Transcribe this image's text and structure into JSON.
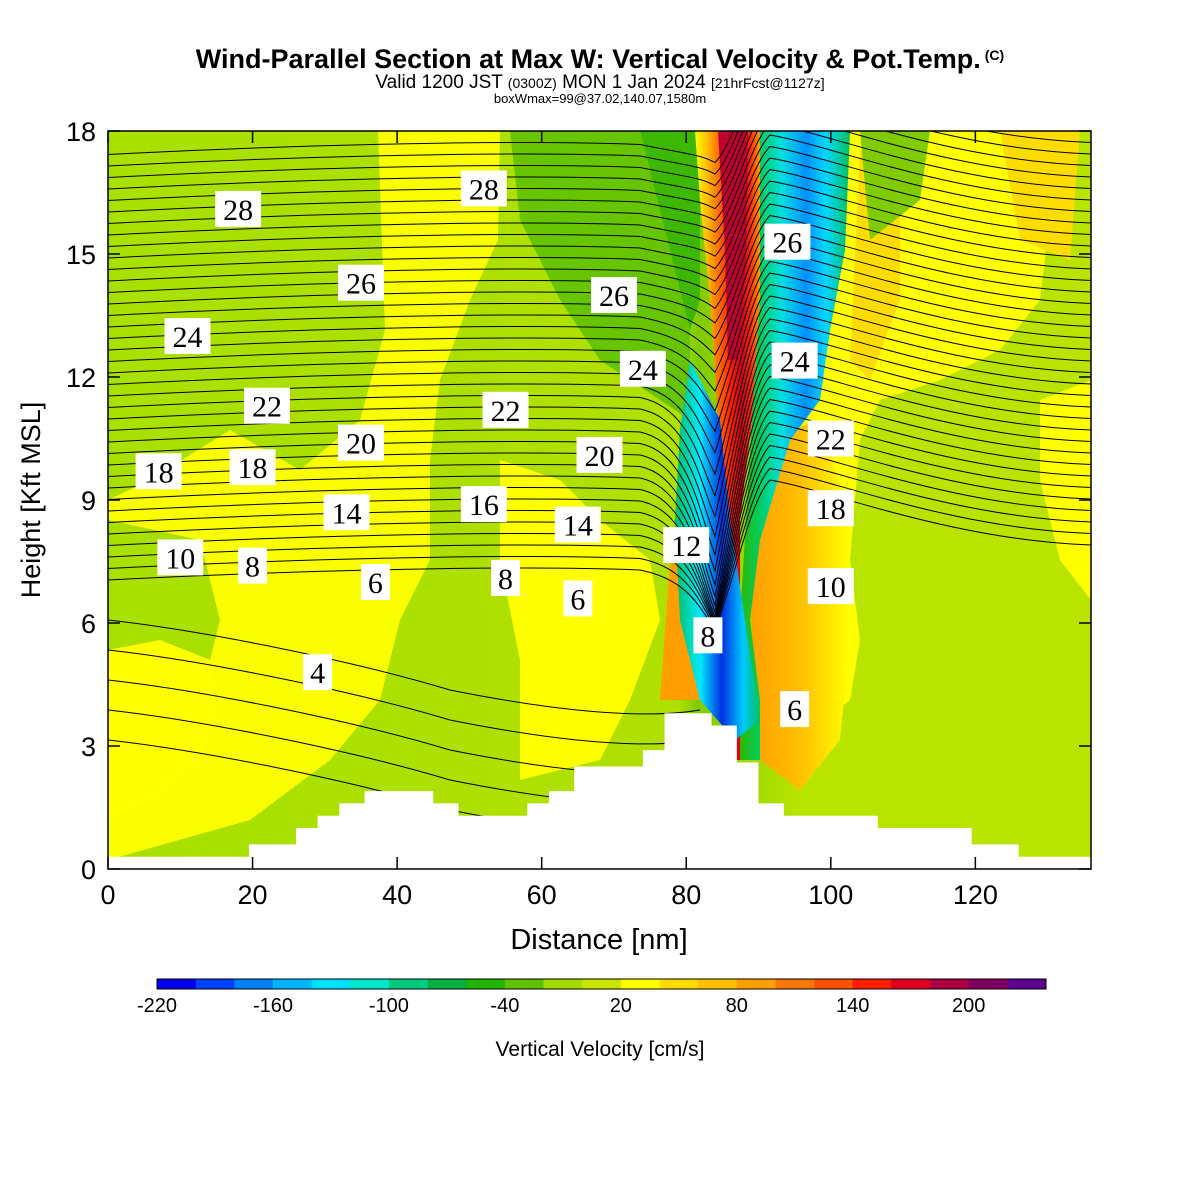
{
  "header": {
    "title": "Wind-Parallel Section at Max W: Vertical Velocity & Pot.Temp.",
    "title_mark": "(C)",
    "valid_main": "Valid 1200 JST",
    "valid_utc": "(0300Z)",
    "valid_date": "MON 1 Jan 2024",
    "valid_fcst": "[21hrFcst@1127z]",
    "box_info": "boxWmax=99@37.02,140.07,1580m"
  },
  "chart_data": {
    "type": "heatmap",
    "xlabel": "Distance [nm]",
    "ylabel": "Height [Kft MSL]",
    "xlim": [
      0,
      136
    ],
    "ylim": [
      0,
      18
    ],
    "x_ticks": [
      0,
      20,
      40,
      60,
      80,
      100,
      120
    ],
    "y_ticks": [
      0,
      3,
      6,
      9,
      12,
      15,
      18
    ],
    "colorbar": {
      "label": "Vertical Velocity [cm/s]",
      "tick_labels": [
        "-220",
        "-160",
        "-100",
        "-40",
        "20",
        "80",
        "140",
        "200"
      ],
      "colors": [
        "#0000ee",
        "#0040ff",
        "#0080ff",
        "#00b4ff",
        "#00e0ff",
        "#00e8c8",
        "#00cc80",
        "#00b040",
        "#20b400",
        "#60c000",
        "#a0dc00",
        "#c8e600",
        "#ffff00",
        "#ffdc00",
        "#ffc000",
        "#ffa000",
        "#ff7800",
        "#ff5000",
        "#ff1e00",
        "#e00020",
        "#b00040",
        "#800060",
        "#600090"
      ]
    },
    "theta_contour_labels": [
      {
        "label": "28",
        "x": 18,
        "z": 16.1
      },
      {
        "label": "28",
        "x": 52,
        "z": 16.6
      },
      {
        "label": "26",
        "x": 35,
        "z": 14.3
      },
      {
        "label": "26",
        "x": 70,
        "z": 14.0
      },
      {
        "label": "26",
        "x": 94,
        "z": 15.3
      },
      {
        "label": "24",
        "x": 11,
        "z": 13.0
      },
      {
        "label": "24",
        "x": 74,
        "z": 12.2
      },
      {
        "label": "24",
        "x": 95,
        "z": 12.4
      },
      {
        "label": "22",
        "x": 22,
        "z": 11.3
      },
      {
        "label": "22",
        "x": 55,
        "z": 11.2
      },
      {
        "label": "22",
        "x": 100,
        "z": 10.5
      },
      {
        "label": "20",
        "x": 35,
        "z": 10.4
      },
      {
        "label": "20",
        "x": 68,
        "z": 10.1
      },
      {
        "label": "18",
        "x": 7,
        "z": 9.7
      },
      {
        "label": "18",
        "x": 20,
        "z": 9.8
      },
      {
        "label": "18",
        "x": 100,
        "z": 8.8
      },
      {
        "label": "16",
        "x": 52,
        "z": 8.9
      },
      {
        "label": "14",
        "x": 33,
        "z": 8.7
      },
      {
        "label": "14",
        "x": 65,
        "z": 8.4
      },
      {
        "label": "12",
        "x": 80,
        "z": 7.9
      },
      {
        "label": "10",
        "x": 10,
        "z": 7.6
      },
      {
        "label": "10",
        "x": 100,
        "z": 6.9
      },
      {
        "label": "8",
        "x": 20,
        "z": 7.4
      },
      {
        "label": "8",
        "x": 55,
        "z": 7.1
      },
      {
        "label": "8",
        "x": 83,
        "z": 5.7
      },
      {
        "label": "6",
        "x": 37,
        "z": 7.0
      },
      {
        "label": "6",
        "x": 65,
        "z": 6.6
      },
      {
        "label": "6",
        "x": 95,
        "z": 3.9
      },
      {
        "label": "4",
        "x": 29,
        "z": 4.8
      }
    ],
    "terrain_height_kft": [
      {
        "x": 0,
        "z": 0.3
      },
      {
        "x": 19.5,
        "z": 0.6
      },
      {
        "x": 26,
        "z": 1.0
      },
      {
        "x": 29,
        "z": 1.3
      },
      {
        "x": 32,
        "z": 1.6
      },
      {
        "x": 35.5,
        "z": 1.9
      },
      {
        "x": 45,
        "z": 1.6
      },
      {
        "x": 48.5,
        "z": 1.3
      },
      {
        "x": 58,
        "z": 1.6
      },
      {
        "x": 61,
        "z": 1.9
      },
      {
        "x": 64.5,
        "z": 2.5
      },
      {
        "x": 74,
        "z": 2.9
      },
      {
        "x": 77,
        "z": 3.8
      },
      {
        "x": 83.5,
        "z": 3.5
      },
      {
        "x": 87,
        "z": 2.6
      },
      {
        "x": 90,
        "z": 1.6
      },
      {
        "x": 93.5,
        "z": 1.3
      },
      {
        "x": 106.5,
        "z": 1.0
      },
      {
        "x": 119.5,
        "z": 0.6
      },
      {
        "x": 126,
        "z": 0.3
      },
      {
        "x": 136,
        "z": 0.3
      }
    ]
  }
}
